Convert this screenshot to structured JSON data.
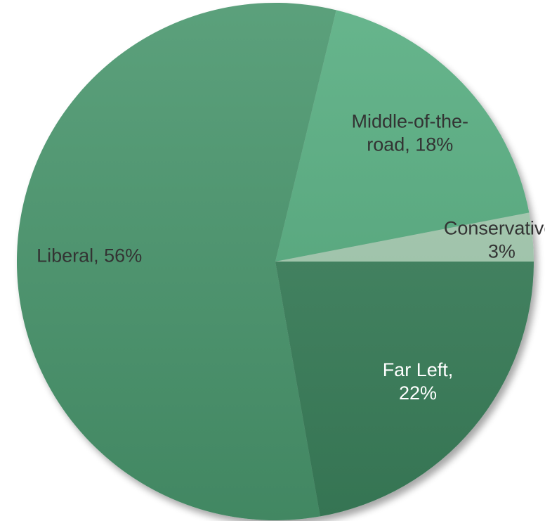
{
  "chart_data": {
    "type": "pie",
    "start_angle_deg": 0,
    "direction": "counterclockwise",
    "slices": [
      {
        "label": "Conservative",
        "value": 3,
        "label_lines": [
          "Conservative,",
          "3%"
        ],
        "color": "#a4cbb0",
        "label_color": "#333333"
      },
      {
        "label": "Middle-of-the-road",
        "value": 18,
        "label_lines": [
          "Middle-of-the-",
          "road, 18%"
        ],
        "color": "#56ad80",
        "label_color": "#333333"
      },
      {
        "label": "Liberal",
        "value": 56,
        "label_lines": [
          "Liberal, 56%"
        ],
        "color": "#48966d",
        "label_color": "#333333"
      },
      {
        "label": "Far Left",
        "value": 22,
        "label_lines": [
          "Far Left,",
          "22%"
        ],
        "color": "#3a815c",
        "label_color": "#ffffff"
      }
    ]
  }
}
